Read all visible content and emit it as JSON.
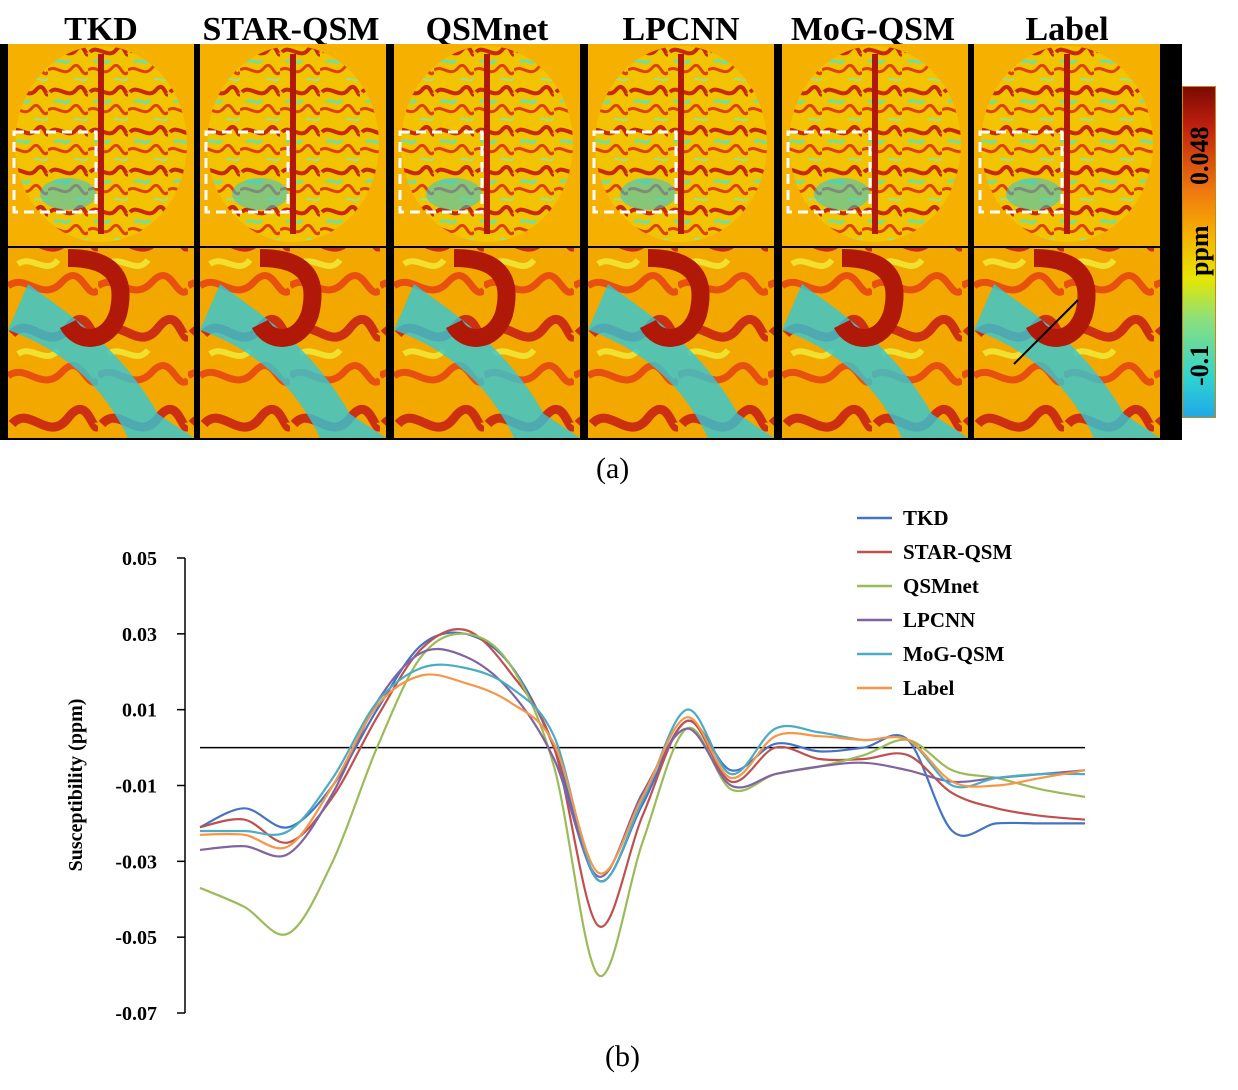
{
  "panel_a": {
    "titles": [
      "TKD",
      "STAR-QSM",
      "QSMnet",
      "LPCNN",
      "MoG-QSM",
      "Label"
    ],
    "colorbar": {
      "unit": "ppm",
      "max_label": "0.048",
      "min_label": "-0.1"
    },
    "caption": "(a)",
    "colors": {
      "background": "#f5b000",
      "dark": "#b01808",
      "cool": "#30c8d8"
    }
  },
  "panel_b": {
    "caption": "(b)"
  },
  "chart_data": {
    "type": "line",
    "title": "",
    "xlabel": "",
    "ylabel": "Susceptibility (ppm)",
    "ylim": [
      -0.07,
      0.05
    ],
    "yticks": [
      0.05,
      0.03,
      0.01,
      -0.01,
      -0.03,
      -0.05,
      -0.07
    ],
    "ytick_labels": [
      "0.05",
      "0.03",
      "0.01",
      "-0.01",
      "-0.03",
      "-0.05",
      "-0.07"
    ],
    "x": [
      0,
      5,
      10,
      15,
      20,
      25,
      30,
      35,
      40,
      45,
      50,
      55,
      60,
      65,
      70,
      75,
      80,
      85,
      90,
      95,
      100
    ],
    "reference_line": 0.0,
    "legend_position": "top-right",
    "series": [
      {
        "name": "TKD",
        "color": "#4472c4",
        "values": [
          -0.021,
          -0.016,
          -0.021,
          -0.01,
          0.01,
          0.027,
          0.03,
          0.022,
          0.0,
          -0.035,
          -0.015,
          0.007,
          -0.006,
          0.001,
          -0.001,
          0.0,
          0.002,
          -0.022,
          -0.02,
          -0.02,
          -0.02
        ]
      },
      {
        "name": "STAR-QSM",
        "color": "#c0504d",
        "values": [
          -0.021,
          -0.019,
          -0.025,
          -0.013,
          0.008,
          0.026,
          0.031,
          0.02,
          0.0,
          -0.047,
          -0.018,
          0.007,
          -0.009,
          0.0,
          -0.003,
          -0.003,
          -0.002,
          -0.012,
          -0.016,
          -0.018,
          -0.019
        ]
      },
      {
        "name": "QSMnet",
        "color": "#9bbb59",
        "values": [
          -0.037,
          -0.042,
          -0.049,
          -0.03,
          0.0,
          0.024,
          0.03,
          0.022,
          -0.005,
          -0.06,
          -0.025,
          0.005,
          -0.011,
          -0.007,
          -0.005,
          -0.002,
          0.002,
          -0.006,
          -0.008,
          -0.011,
          -0.013
        ]
      },
      {
        "name": "LPCNN",
        "color": "#8064a2",
        "values": [
          -0.027,
          -0.026,
          -0.028,
          -0.012,
          0.012,
          0.025,
          0.024,
          0.015,
          -0.003,
          -0.034,
          -0.012,
          0.005,
          -0.01,
          -0.007,
          -0.005,
          -0.004,
          -0.006,
          -0.009,
          -0.008,
          -0.007,
          -0.006
        ]
      },
      {
        "name": "MoG-QSM",
        "color": "#4bacc6",
        "values": [
          -0.022,
          -0.022,
          -0.022,
          -0.008,
          0.012,
          0.021,
          0.021,
          0.016,
          0.003,
          -0.035,
          -0.014,
          0.01,
          -0.007,
          0.005,
          0.004,
          0.002,
          0.002,
          -0.01,
          -0.008,
          -0.007,
          -0.007
        ]
      },
      {
        "name": "Label",
        "color": "#f79646",
        "values": [
          -0.023,
          -0.023,
          -0.026,
          -0.01,
          0.011,
          0.019,
          0.017,
          0.012,
          0.001,
          -0.033,
          -0.013,
          0.008,
          -0.008,
          0.003,
          0.003,
          0.002,
          0.002,
          -0.009,
          -0.01,
          -0.008,
          -0.006
        ]
      }
    ]
  }
}
